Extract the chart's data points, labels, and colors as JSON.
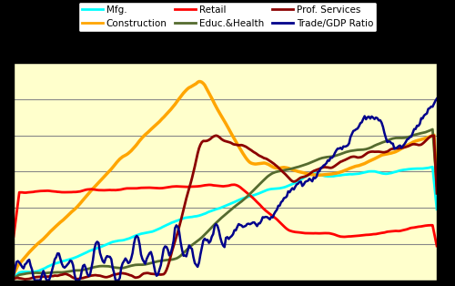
{
  "background_color": "#FFFFCC",
  "outer_bg": "#000000",
  "legend_bg": "#FFFFFF",
  "legend_items": [
    {
      "label": "Mfg.",
      "color": "#00FFFF"
    },
    {
      "label": "Construction",
      "color": "#FFA500"
    },
    {
      "label": "Retail",
      "color": "#FF0000"
    },
    {
      "label": "Educ.&Health",
      "color": "#556B2F"
    },
    {
      "label": "Prof. Services",
      "color": "#8B0000"
    },
    {
      "label": "Trade/GDP Ratio",
      "color": "#00008B"
    }
  ],
  "series": {
    "mfg": {
      "color": "#00FFFF",
      "lw": 2.0
    },
    "construction": {
      "color": "#FFA500",
      "lw": 2.5
    },
    "retail": {
      "color": "#FF0000",
      "lw": 2.0
    },
    "educ_health": {
      "color": "#556B2F",
      "lw": 2.0
    },
    "prof_services": {
      "color": "#8B0000",
      "lw": 2.0
    },
    "trade_gdp": {
      "color": "#00008B",
      "lw": 1.8
    }
  },
  "grid_color": "#888888",
  "grid_lw": 0.8,
  "n_grid_lines": 7
}
